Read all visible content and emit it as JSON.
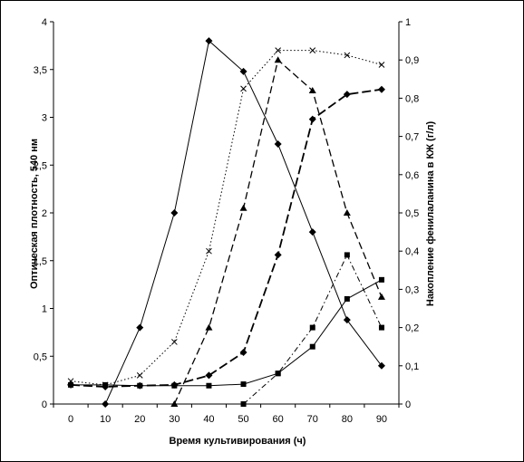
{
  "chart_data": {
    "type": "line",
    "title": "",
    "xlabel": "Время культивирования (ч)",
    "ylabel": "Оптическая плотность, 540 нм",
    "y2label": "Накопление фенилаланина в КЖ (г/л)",
    "xlim": [
      -5,
      95
    ],
    "ylim": [
      0,
      4
    ],
    "y2lim": [
      0,
      1
    ],
    "x_ticks": [
      "0",
      "10",
      "20",
      "30",
      "40",
      "50",
      "60",
      "70",
      "80",
      "90"
    ],
    "y_ticks": [
      "0",
      "0,5",
      "1",
      "1,5",
      "2",
      "2,5",
      "3",
      "3,5",
      "4"
    ],
    "y2_ticks": [
      "0",
      "0,1",
      "0,2",
      "0,3",
      "0,4",
      "0,5",
      "0,6",
      "0,7",
      "0,8",
      "0,9",
      "1"
    ],
    "grid": false,
    "series": [
      {
        "axis": "y",
        "style": "solid",
        "marker": "diamond",
        "x": [
          10,
          20,
          30,
          40,
          50,
          60,
          70,
          80,
          90
        ],
        "y": [
          0,
          0.8,
          2.0,
          3.8,
          3.48,
          2.72,
          1.8,
          0.88,
          0.4
        ]
      },
      {
        "axis": "y",
        "style": "dotted",
        "marker": "x",
        "x": [
          0,
          10,
          20,
          30,
          40,
          50,
          60,
          70,
          80,
          90
        ],
        "y": [
          0.24,
          0.2,
          0.3,
          0.65,
          1.6,
          3.3,
          3.7,
          3.7,
          3.65,
          3.55
        ]
      },
      {
        "axis": "y",
        "style": "dashed",
        "marker": "triangle",
        "x": [
          30,
          40,
          50,
          60,
          70,
          80,
          90
        ],
        "y": [
          0,
          0.8,
          2.05,
          3.6,
          3.28,
          2.0,
          1.12
        ]
      },
      {
        "axis": "y",
        "style": "dashdot",
        "marker": "square",
        "x": [
          50,
          60,
          70,
          80,
          90
        ],
        "y": [
          0,
          0.32,
          0.8,
          1.56,
          0.8
        ]
      },
      {
        "axis": "y2",
        "style": "longdash",
        "marker": "diamond",
        "x": [
          0,
          10,
          20,
          30,
          40,
          50,
          60,
          70,
          80,
          90
        ],
        "y": [
          0.05,
          0.045,
          0.048,
          0.05,
          0.075,
          0.135,
          0.39,
          0.745,
          0.81,
          0.823
        ]
      },
      {
        "axis": "y2",
        "style": "solid-thin",
        "marker": "square",
        "x": [
          0,
          10,
          20,
          30,
          40,
          50,
          60,
          70,
          80,
          90
        ],
        "y": [
          0.05,
          0.05,
          0.048,
          0.048,
          0.048,
          0.052,
          0.08,
          0.15,
          0.275,
          0.325
        ]
      }
    ]
  }
}
